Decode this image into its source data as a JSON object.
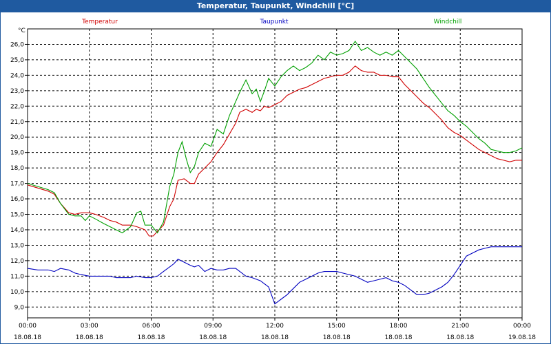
{
  "window": {
    "title": "Temperatur, Taupunkt, Windchill [°C]"
  },
  "chart_data": {
    "type": "line",
    "title": "Temperatur, Taupunkt, Windchill [°C]",
    "ylabel": "°C",
    "xlabel": "",
    "ylim": [
      8.3,
      27
    ],
    "xlim": [
      0,
      24
    ],
    "grid": true,
    "legend_position": "top",
    "y_ticks": [
      "9,0",
      "10,0",
      "11,0",
      "12,0",
      "13,0",
      "14,0",
      "15,0",
      "16,0",
      "17,0",
      "18,0",
      "19,0",
      "20,0",
      "21,0",
      "22,0",
      "23,0",
      "24,0",
      "25,0",
      "26,0"
    ],
    "x_ticks": [
      {
        "time": "00:00",
        "date": "18.08.18"
      },
      {
        "time": "03:00",
        "date": "18.08.18"
      },
      {
        "time": "06:00",
        "date": "18.08.18"
      },
      {
        "time": "09:00",
        "date": "18.08.18"
      },
      {
        "time": "12:00",
        "date": "18.08.18"
      },
      {
        "time": "15:00",
        "date": "18.08.18"
      },
      {
        "time": "18:00",
        "date": "18.08.18"
      },
      {
        "time": "21:00",
        "date": "18.08.18"
      },
      {
        "time": "00:00",
        "date": "19.08.18"
      }
    ],
    "x_unit": "hours since 18.08.18 00:00",
    "series": [
      {
        "name": "Temperatur",
        "color": "#d00000",
        "points": [
          [
            0,
            16.9
          ],
          [
            0.5,
            16.7
          ],
          [
            1,
            16.5
          ],
          [
            1.3,
            16.3
          ],
          [
            1.6,
            15.7
          ],
          [
            2,
            15.1
          ],
          [
            2.3,
            15.0
          ],
          [
            2.6,
            15.1
          ],
          [
            3,
            15.1
          ],
          [
            3.3,
            15.0
          ],
          [
            3.7,
            14.8
          ],
          [
            4,
            14.6
          ],
          [
            4.3,
            14.5
          ],
          [
            4.6,
            14.3
          ],
          [
            5,
            14.3
          ],
          [
            5.3,
            14.2
          ],
          [
            5.7,
            14.0
          ],
          [
            5.9,
            13.6
          ],
          [
            6.1,
            13.6
          ],
          [
            6.3,
            13.9
          ],
          [
            6.6,
            14.3
          ],
          [
            6.9,
            15.5
          ],
          [
            7.1,
            16.0
          ],
          [
            7.3,
            17.2
          ],
          [
            7.6,
            17.3
          ],
          [
            7.9,
            17.0
          ],
          [
            8.1,
            17.0
          ],
          [
            8.3,
            17.6
          ],
          [
            8.6,
            18.0
          ],
          [
            8.9,
            18.4
          ],
          [
            9.2,
            19.0
          ],
          [
            9.5,
            19.5
          ],
          [
            9.8,
            20.2
          ],
          [
            10.1,
            20.9
          ],
          [
            10.3,
            21.6
          ],
          [
            10.6,
            21.8
          ],
          [
            10.9,
            21.6
          ],
          [
            11.1,
            21.8
          ],
          [
            11.3,
            21.7
          ],
          [
            11.5,
            22.0
          ],
          [
            11.7,
            21.9
          ],
          [
            12,
            22.1
          ],
          [
            12.3,
            22.3
          ],
          [
            12.6,
            22.7
          ],
          [
            12.9,
            22.9
          ],
          [
            13.2,
            23.1
          ],
          [
            13.5,
            23.2
          ],
          [
            13.8,
            23.4
          ],
          [
            14.1,
            23.6
          ],
          [
            14.4,
            23.8
          ],
          [
            14.7,
            23.9
          ],
          [
            15,
            24.0
          ],
          [
            15.3,
            24.0
          ],
          [
            15.6,
            24.2
          ],
          [
            15.9,
            24.6
          ],
          [
            16.2,
            24.3
          ],
          [
            16.5,
            24.2
          ],
          [
            16.8,
            24.2
          ],
          [
            17.1,
            24.0
          ],
          [
            17.4,
            24.0
          ],
          [
            17.7,
            23.9
          ],
          [
            18,
            23.9
          ],
          [
            18.3,
            23.4
          ],
          [
            18.6,
            23.0
          ],
          [
            18.9,
            22.6
          ],
          [
            19.2,
            22.2
          ],
          [
            19.5,
            21.9
          ],
          [
            19.8,
            21.5
          ],
          [
            20.1,
            21.1
          ],
          [
            20.4,
            20.6
          ],
          [
            20.7,
            20.3
          ],
          [
            21,
            20.1
          ],
          [
            21.3,
            19.8
          ],
          [
            21.6,
            19.5
          ],
          [
            21.9,
            19.2
          ],
          [
            22.2,
            19.0
          ],
          [
            22.5,
            18.8
          ],
          [
            22.8,
            18.6
          ],
          [
            23.1,
            18.5
          ],
          [
            23.4,
            18.4
          ],
          [
            23.7,
            18.5
          ],
          [
            24,
            18.5
          ]
        ]
      },
      {
        "name": "Taupunkt",
        "color": "#0000c0",
        "points": [
          [
            0,
            11.5
          ],
          [
            0.5,
            11.4
          ],
          [
            1,
            11.4
          ],
          [
            1.3,
            11.3
          ],
          [
            1.6,
            11.5
          ],
          [
            2,
            11.4
          ],
          [
            2.3,
            11.2
          ],
          [
            2.6,
            11.1
          ],
          [
            3,
            11.0
          ],
          [
            3.3,
            11.0
          ],
          [
            3.7,
            11.0
          ],
          [
            4,
            11.0
          ],
          [
            4.3,
            10.9
          ],
          [
            4.6,
            10.9
          ],
          [
            5,
            10.9
          ],
          [
            5.3,
            11.0
          ],
          [
            5.7,
            10.9
          ],
          [
            6,
            10.9
          ],
          [
            6.3,
            11.0
          ],
          [
            6.6,
            11.3
          ],
          [
            6.9,
            11.6
          ],
          [
            7.1,
            11.8
          ],
          [
            7.3,
            12.1
          ],
          [
            7.6,
            11.9
          ],
          [
            7.9,
            11.7
          ],
          [
            8.1,
            11.6
          ],
          [
            8.3,
            11.7
          ],
          [
            8.6,
            11.3
          ],
          [
            8.9,
            11.5
          ],
          [
            9.2,
            11.4
          ],
          [
            9.5,
            11.4
          ],
          [
            9.8,
            11.5
          ],
          [
            10.1,
            11.5
          ],
          [
            10.3,
            11.3
          ],
          [
            10.6,
            11.0
          ],
          [
            10.9,
            10.9
          ],
          [
            11.1,
            10.8
          ],
          [
            11.3,
            10.7
          ],
          [
            11.5,
            10.5
          ],
          [
            11.7,
            10.3
          ],
          [
            12,
            9.2
          ],
          [
            12.3,
            9.5
          ],
          [
            12.6,
            9.8
          ],
          [
            12.9,
            10.2
          ],
          [
            13.2,
            10.6
          ],
          [
            13.5,
            10.8
          ],
          [
            13.8,
            11.0
          ],
          [
            14.1,
            11.2
          ],
          [
            14.4,
            11.3
          ],
          [
            14.7,
            11.3
          ],
          [
            15,
            11.3
          ],
          [
            15.3,
            11.2
          ],
          [
            15.6,
            11.1
          ],
          [
            15.9,
            11.0
          ],
          [
            16.2,
            10.8
          ],
          [
            16.5,
            10.6
          ],
          [
            16.8,
            10.7
          ],
          [
            17.1,
            10.8
          ],
          [
            17.4,
            10.9
          ],
          [
            17.7,
            10.7
          ],
          [
            18,
            10.6
          ],
          [
            18.3,
            10.4
          ],
          [
            18.6,
            10.1
          ],
          [
            18.9,
            9.8
          ],
          [
            19.2,
            9.8
          ],
          [
            19.5,
            9.9
          ],
          [
            19.8,
            10.1
          ],
          [
            20.1,
            10.3
          ],
          [
            20.4,
            10.6
          ],
          [
            20.7,
            11.1
          ],
          [
            21,
            11.7
          ],
          [
            21.3,
            12.3
          ],
          [
            21.6,
            12.5
          ],
          [
            21.9,
            12.7
          ],
          [
            22.2,
            12.8
          ],
          [
            22.5,
            12.9
          ],
          [
            22.8,
            12.9
          ],
          [
            23.1,
            12.9
          ],
          [
            23.4,
            12.9
          ],
          [
            23.7,
            12.9
          ],
          [
            24,
            12.9
          ]
        ]
      },
      {
        "name": "Windchill",
        "color": "#00a000",
        "points": [
          [
            0,
            17.0
          ],
          [
            0.5,
            16.8
          ],
          [
            1,
            16.6
          ],
          [
            1.3,
            16.4
          ],
          [
            1.6,
            15.7
          ],
          [
            2,
            15.0
          ],
          [
            2.3,
            14.9
          ],
          [
            2.6,
            14.9
          ],
          [
            2.8,
            14.6
          ],
          [
            3,
            14.9
          ],
          [
            3.3,
            14.7
          ],
          [
            3.7,
            14.4
          ],
          [
            4,
            14.2
          ],
          [
            4.3,
            14.0
          ],
          [
            4.6,
            13.8
          ],
          [
            5,
            14.2
          ],
          [
            5.3,
            15.1
          ],
          [
            5.5,
            15.2
          ],
          [
            5.7,
            14.3
          ],
          [
            6,
            14.3
          ],
          [
            6.3,
            13.8
          ],
          [
            6.6,
            14.5
          ],
          [
            6.9,
            16.8
          ],
          [
            7.1,
            17.6
          ],
          [
            7.3,
            19.0
          ],
          [
            7.5,
            19.7
          ],
          [
            7.7,
            18.6
          ],
          [
            7.9,
            17.7
          ],
          [
            8.1,
            18.1
          ],
          [
            8.3,
            19.0
          ],
          [
            8.6,
            19.6
          ],
          [
            8.9,
            19.4
          ],
          [
            9.2,
            20.5
          ],
          [
            9.5,
            20.2
          ],
          [
            9.8,
            21.4
          ],
          [
            10.1,
            22.3
          ],
          [
            10.3,
            22.9
          ],
          [
            10.6,
            23.7
          ],
          [
            10.9,
            22.8
          ],
          [
            11.1,
            23.1
          ],
          [
            11.3,
            22.3
          ],
          [
            11.5,
            23.0
          ],
          [
            11.7,
            23.8
          ],
          [
            12,
            23.3
          ],
          [
            12.3,
            23.9
          ],
          [
            12.6,
            24.3
          ],
          [
            12.9,
            24.6
          ],
          [
            13.2,
            24.3
          ],
          [
            13.5,
            24.5
          ],
          [
            13.8,
            24.8
          ],
          [
            14.1,
            25.3
          ],
          [
            14.4,
            25.0
          ],
          [
            14.7,
            25.5
          ],
          [
            15,
            25.3
          ],
          [
            15.3,
            25.4
          ],
          [
            15.6,
            25.6
          ],
          [
            15.9,
            26.2
          ],
          [
            16.2,
            25.6
          ],
          [
            16.5,
            25.8
          ],
          [
            16.8,
            25.5
          ],
          [
            17.1,
            25.3
          ],
          [
            17.4,
            25.5
          ],
          [
            17.7,
            25.3
          ],
          [
            18,
            25.6
          ],
          [
            18.3,
            25.2
          ],
          [
            18.6,
            24.8
          ],
          [
            18.9,
            24.4
          ],
          [
            19.2,
            23.8
          ],
          [
            19.5,
            23.2
          ],
          [
            19.8,
            22.7
          ],
          [
            20.1,
            22.2
          ],
          [
            20.4,
            21.7
          ],
          [
            20.7,
            21.4
          ],
          [
            21,
            21.0
          ],
          [
            21.3,
            20.7
          ],
          [
            21.6,
            20.3
          ],
          [
            21.9,
            19.9
          ],
          [
            22.2,
            19.6
          ],
          [
            22.5,
            19.2
          ],
          [
            22.8,
            19.1
          ],
          [
            23.1,
            19.0
          ],
          [
            23.4,
            19.0
          ],
          [
            23.7,
            19.1
          ],
          [
            24,
            19.3
          ]
        ]
      }
    ]
  }
}
